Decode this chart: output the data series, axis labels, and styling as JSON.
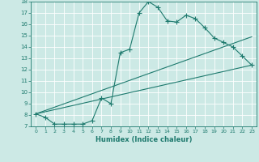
{
  "xlabel": "Humidex (Indice chaleur)",
  "xlim": [
    -0.5,
    23.5
  ],
  "ylim": [
    7,
    18
  ],
  "xticks": [
    0,
    1,
    2,
    3,
    4,
    5,
    6,
    7,
    8,
    9,
    10,
    11,
    12,
    13,
    14,
    15,
    16,
    17,
    18,
    19,
    20,
    21,
    22,
    23
  ],
  "yticks": [
    7,
    8,
    9,
    10,
    11,
    12,
    13,
    14,
    15,
    16,
    17,
    18
  ],
  "bg_color": "#cce9e5",
  "line_color": "#1e7a6e",
  "line1_x": [
    0,
    1,
    2,
    3,
    4,
    5,
    6,
    7,
    8,
    9,
    10,
    11,
    12,
    13,
    14,
    15,
    16,
    17,
    18,
    19,
    20,
    21,
    22,
    23
  ],
  "line1_y": [
    8.1,
    7.8,
    7.2,
    7.2,
    7.2,
    7.2,
    7.5,
    9.5,
    9.0,
    13.5,
    13.8,
    17.0,
    18.0,
    17.5,
    16.3,
    16.2,
    16.8,
    16.5,
    15.7,
    14.8,
    14.4,
    14.0,
    13.2,
    12.4
  ],
  "line2_x": [
    0,
    23
  ],
  "line2_y": [
    8.1,
    12.4
  ],
  "line3_x": [
    0,
    23
  ],
  "line3_y": [
    8.1,
    14.9
  ]
}
